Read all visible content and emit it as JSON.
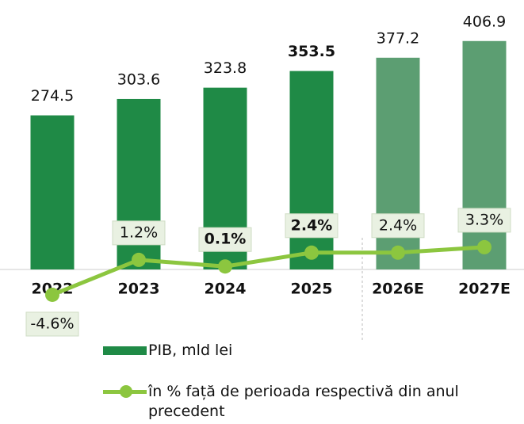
{
  "chart_data": {
    "type": "bar",
    "categories": [
      "2022",
      "2023",
      "2024",
      "2025",
      "2026E",
      "2027E"
    ],
    "series": [
      {
        "name": "PIB, mld lei",
        "type": "bar",
        "colors": [
          "#1f8a46",
          "#1f8a46",
          "#1f8a46",
          "#1f8a46",
          "#5c9e72",
          "#5c9e72"
        ],
        "color": "#1f8a46",
        "values": [
          274.5,
          303.6,
          323.8,
          353.5,
          377.2,
          406.9
        ]
      },
      {
        "name": "în % față de perioada respectivă din anul precedent",
        "type": "line",
        "axis": "y2",
        "color": "#8cc63f",
        "values": [
          -4.6,
          1.2,
          0.1,
          2.4,
          2.4,
          3.3
        ],
        "value_labels": [
          "-4.6%",
          "1.2%",
          "0.1%",
          "2.4%",
          "2.4%",
          "3.3%"
        ]
      }
    ],
    "ylim": [
      0,
      480
    ],
    "y2lim": [
      -6,
      4
    ]
  }
}
